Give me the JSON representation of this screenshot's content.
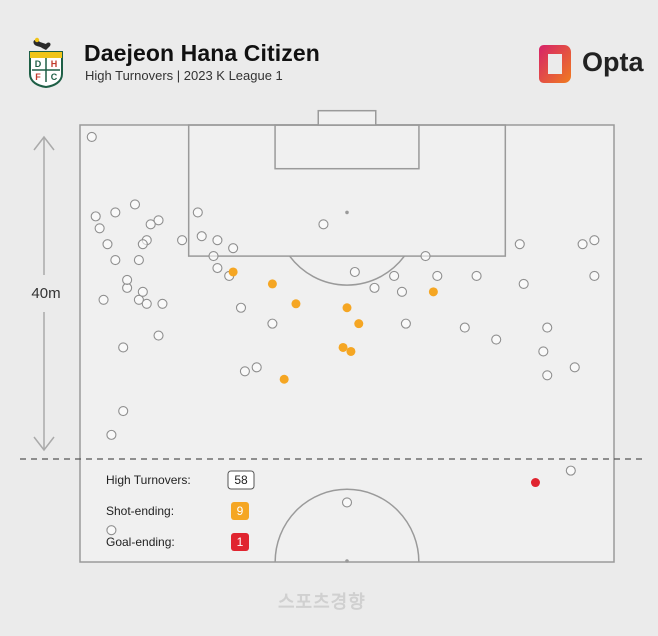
{
  "header": {
    "title": "Daejeon Hana Citizen",
    "subtitle": "High Turnovers | 2023 K League 1",
    "crest_letters": [
      "D",
      "H",
      "F",
      "C"
    ],
    "brand": "Opta"
  },
  "measure_label": "40m",
  "legend": [
    {
      "label": "High Turnovers:",
      "count": "58",
      "kind": "turnover"
    },
    {
      "label": "Shot-ending:",
      "count": "9",
      "kind": "shot"
    },
    {
      "label": "Goal-ending:",
      "count": "1",
      "kind": "goal"
    }
  ],
  "colors": {
    "background": "#ebebeb",
    "pitch": "#f0f0f0",
    "lines": "#9a9a9a",
    "turnover": "#ffffff",
    "shot": "#f5a623",
    "goal": "#e0242f",
    "opta_pink": "#d6226a",
    "opta_orange": "#f07c1f",
    "crest_green": "#1e5f46"
  },
  "watermark": "스포츠경향",
  "chart_data": {
    "type": "scatter",
    "title": "Daejeon Hana Citizen",
    "subtitle": "High Turnovers | 2023 K League 1",
    "xlabel": "",
    "ylabel": "",
    "units": "metres",
    "xlim": [
      0,
      68
    ],
    "ylim": [
      0,
      55
    ],
    "y_reference": "distance from opponent goal line",
    "threshold_line_y": 40,
    "threshold_label": "40m",
    "legend_position": "bottom-left",
    "series": [
      {
        "name": "High Turnovers",
        "kind": "turnover",
        "points": [
          [
            4,
            51
          ],
          [
            34,
            47.5
          ],
          [
            62.5,
            43.5
          ],
          [
            4,
            39
          ],
          [
            5.5,
            36
          ],
          [
            21,
            31
          ],
          [
            22.5,
            30.5
          ],
          [
            5.5,
            28
          ],
          [
            59.5,
            31.5
          ],
          [
            63,
            30.5
          ],
          [
            59,
            28.5
          ],
          [
            10,
            26.5
          ],
          [
            59.5,
            25.5
          ],
          [
            24.5,
            25
          ],
          [
            41.5,
            25
          ],
          [
            49,
            25.5
          ],
          [
            53,
            27
          ],
          [
            20.5,
            23
          ],
          [
            3,
            22
          ],
          [
            7.5,
            22
          ],
          [
            8.5,
            22.5
          ],
          [
            10.5,
            22.5
          ],
          [
            6,
            20.5
          ],
          [
            8,
            21
          ],
          [
            6,
            19.5
          ],
          [
            19,
            19
          ],
          [
            17.5,
            18
          ],
          [
            37.5,
            20.5
          ],
          [
            41,
            21
          ],
          [
            35,
            18.5
          ],
          [
            40,
            19
          ],
          [
            45.5,
            19
          ],
          [
            50.5,
            19
          ],
          [
            56.5,
            20
          ],
          [
            65.5,
            19
          ],
          [
            4.5,
            17
          ],
          [
            7.5,
            17
          ],
          [
            17,
            16.5
          ],
          [
            44,
            16.5
          ],
          [
            1.5,
            1.5
          ],
          [
            8.5,
            14.5
          ],
          [
            17.5,
            14.5
          ],
          [
            13,
            14.5
          ],
          [
            15.5,
            14
          ],
          [
            10,
            12
          ],
          [
            2,
            11.5
          ],
          [
            31,
            12.5
          ],
          [
            2.5,
            13
          ],
          [
            4.5,
            11
          ],
          [
            56,
            15
          ],
          [
            8,
            15
          ],
          [
            19.5,
            15.5
          ],
          [
            9,
            12.5
          ],
          [
            15,
            11
          ],
          [
            7,
            10
          ],
          [
            3.5,
            15
          ],
          [
            64,
            15
          ],
          [
            65.5,
            14.5
          ]
        ]
      },
      {
        "name": "Shot-ending",
        "kind": "shot",
        "points": [
          [
            26,
            32
          ],
          [
            33.5,
            28
          ],
          [
            34.5,
            28.5
          ],
          [
            27.5,
            22.5
          ],
          [
            34,
            23
          ],
          [
            24.5,
            20
          ],
          [
            45,
            21
          ],
          [
            19.5,
            18.5
          ],
          [
            35.5,
            25
          ]
        ]
      },
      {
        "name": "Goal-ending",
        "kind": "goal",
        "points": [
          [
            58,
            45
          ]
        ]
      }
    ]
  }
}
